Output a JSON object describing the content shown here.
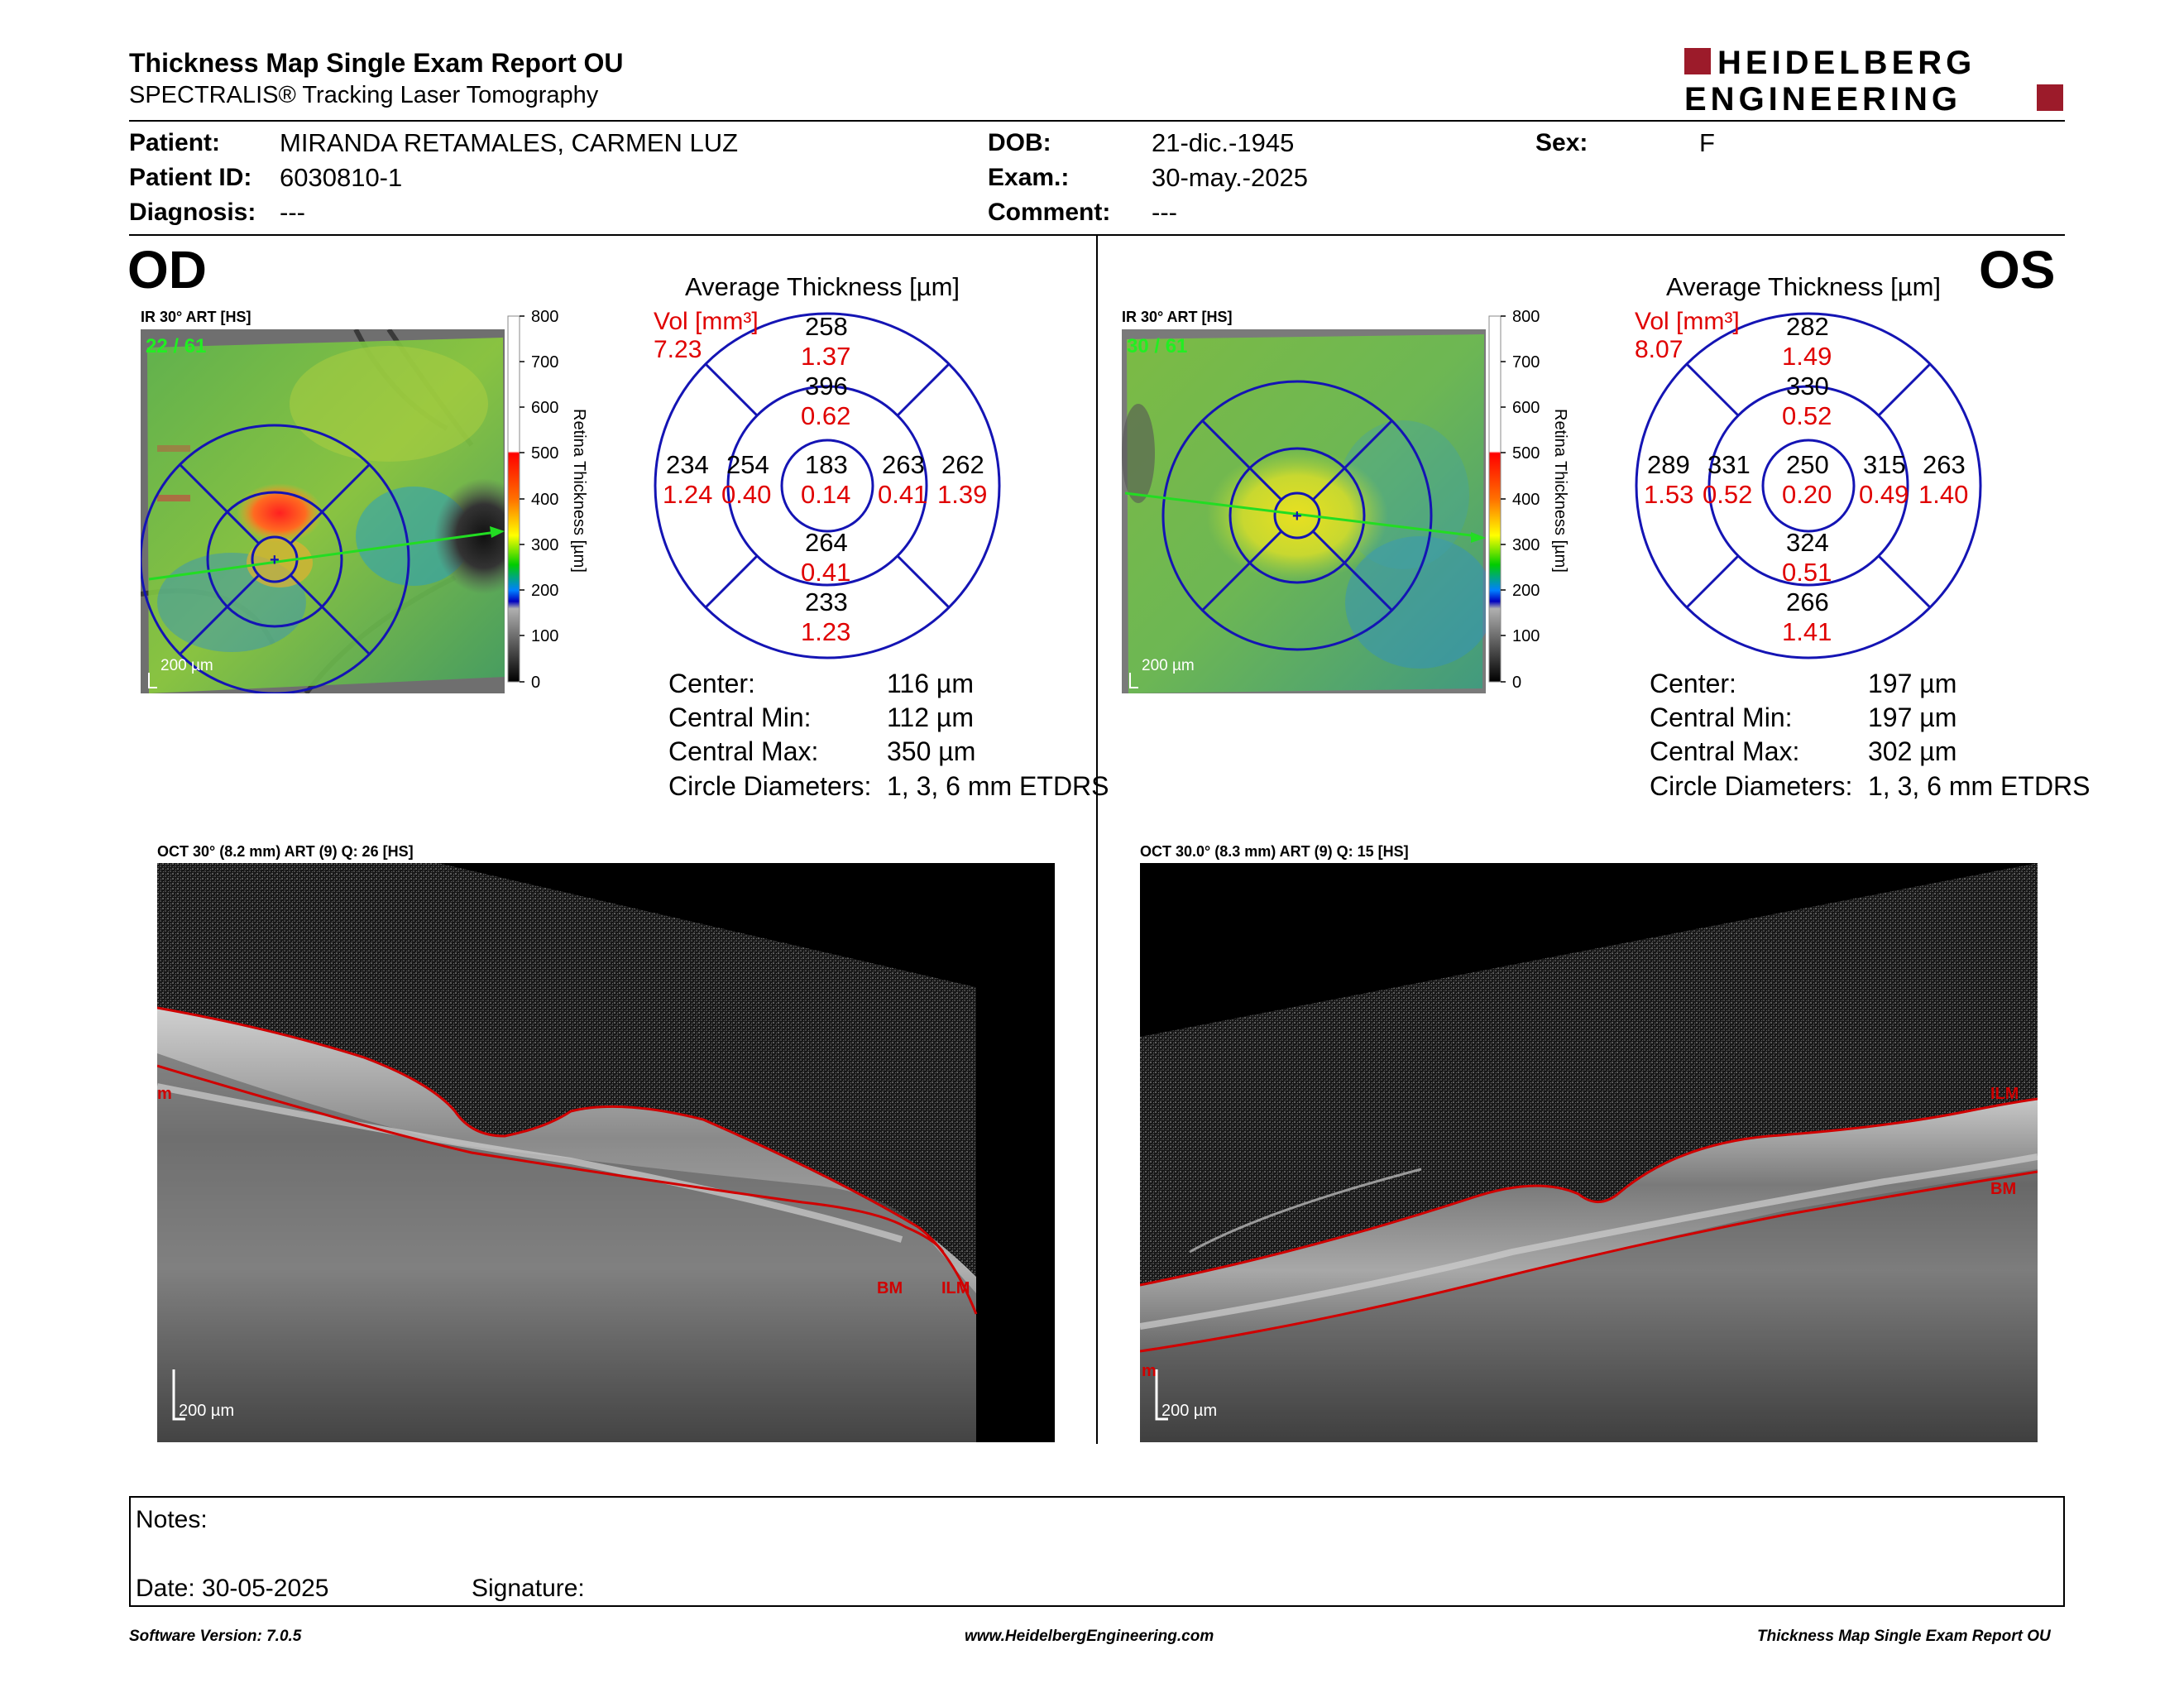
{
  "header": {
    "title": "Thickness Map Single Exam Report OU",
    "subtitle": "SPECTRALIS® Tracking Laser Tomography",
    "logo_line1": "HEIDELBERG",
    "logo_line2": "ENGINEERING"
  },
  "patient": {
    "patient_label": "Patient:",
    "patient_value": "MIRANDA RETAMALES, CARMEN LUZ",
    "id_label": "Patient ID:",
    "id_value": "6030810-1",
    "diagnosis_label": "Diagnosis:",
    "diagnosis_value": "---",
    "dob_label": "DOB:",
    "dob_value": "21-dic.-1945",
    "exam_label": "Exam.:",
    "exam_value": "30-may.-2025",
    "comment_label": "Comment:",
    "comment_value": "---",
    "sex_label": "Sex:",
    "sex_value": "F"
  },
  "od": {
    "eye_label": "OD",
    "ir_caption": "IR 30° ART [HS]",
    "frames": "22 / 61",
    "scalebar": "200 µm",
    "avg_title": "Average Thickness [µm]",
    "vol_label": "Vol [mm³]",
    "vol_total": "7.23",
    "grid": {
      "outer_sup": "258",
      "outer_sup_vol": "1.37",
      "inner_sup": "396",
      "inner_sup_vol": "0.62",
      "outer_temp": "234",
      "outer_temp_vol": "1.24",
      "inner_temp": "254",
      "inner_temp_vol": "0.40",
      "center": "183",
      "center_vol": "0.14",
      "inner_nasal": "263",
      "inner_nasal_vol": "0.41",
      "outer_nasal": "262",
      "outer_nasal_vol": "1.39",
      "inner_inf": "264",
      "inner_inf_vol": "0.41",
      "outer_inf": "233",
      "outer_inf_vol": "1.23"
    },
    "stats": {
      "center_label": "Center:",
      "center_value": "116 µm",
      "min_label": "Central Min:",
      "min_value": "112 µm",
      "max_label": "Central Max:",
      "max_value": "350 µm",
      "diam_label": "Circle Diameters:",
      "diam_value": "1, 3, 6 mm ETDRS"
    },
    "oct_caption": "OCT 30° (8.2 mm) ART (9) Q: 26 [HS]",
    "oct_scalebar": "200 µm",
    "bm_label": "BM",
    "ilm_label": "ILM",
    "m_label": "m"
  },
  "os": {
    "eye_label": "OS",
    "ir_caption": "IR 30° ART [HS]",
    "frames": "30 / 61",
    "scalebar": "200 µm",
    "avg_title": "Average Thickness [µm]",
    "vol_label": "Vol [mm³]",
    "vol_total": "8.07",
    "grid": {
      "outer_sup": "282",
      "outer_sup_vol": "1.49",
      "inner_sup": "330",
      "inner_sup_vol": "0.52",
      "outer_temp": "289",
      "outer_temp_vol": "1.53",
      "inner_temp": "331",
      "inner_temp_vol": "0.52",
      "center": "250",
      "center_vol": "0.20",
      "inner_nasal": "315",
      "inner_nasal_vol": "0.49",
      "outer_nasal": "263",
      "outer_nasal_vol": "1.40",
      "inner_inf": "324",
      "inner_inf_vol": "0.51",
      "outer_inf": "266",
      "outer_inf_vol": "1.41"
    },
    "stats": {
      "center_label": "Center:",
      "center_value": "197 µm",
      "min_label": "Central Min:",
      "min_value": "197 µm",
      "max_label": "Central Max:",
      "max_value": "302 µm",
      "diam_label": "Circle Diameters:",
      "diam_value": "1, 3, 6 mm ETDRS"
    },
    "oct_caption": "OCT 30.0° (8.3 mm) ART (9) Q: 15 [HS]",
    "oct_scalebar": "200 µm",
    "bm_label": "BM",
    "ilm_label": "ILM",
    "m_label": "m"
  },
  "colorbar": {
    "ticks": [
      "800",
      "700",
      "600",
      "500",
      "400",
      "300",
      "200",
      "100",
      "0"
    ],
    "label": "Retina  Thickness [µm]"
  },
  "notes": {
    "notes_label": "Notes:",
    "date_label": "Date: 30-05-2025",
    "signature_label": "Signature:"
  },
  "footer": {
    "software": "Software Version: 7.0.5",
    "website": "www.HeidelbergEngineering.com",
    "report_name": "Thickness Map Single Exam Report OU"
  },
  "colors": {
    "brand_red": "#9c1b2a",
    "grid_blue": "#1414b4",
    "volume_red": "#e00000",
    "segmentation_red": "#d00000",
    "frames_green": "#22ee22"
  }
}
